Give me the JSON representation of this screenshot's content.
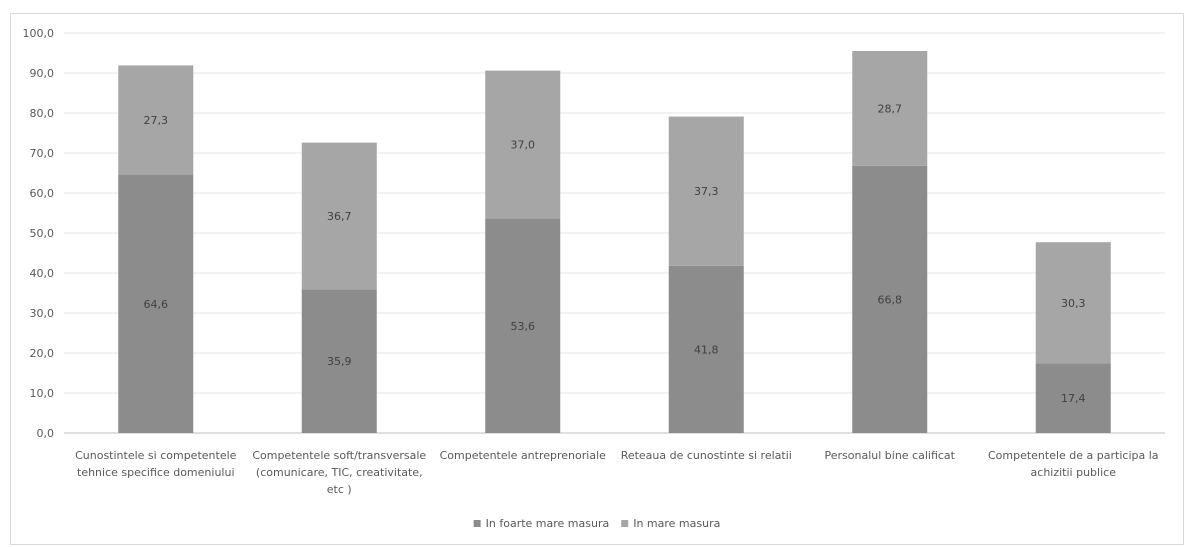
{
  "chart_data": {
    "type": "bar",
    "stacked": true,
    "categories": [
      [
        "Cunostintele si competentele",
        "tehnice specifice domeniului"
      ],
      [
        "Competentele soft/transversale",
        "(comunicare, TIC, creativitate,",
        "etc )"
      ],
      [
        "Competentele antreprenoriale"
      ],
      [
        "Reteaua de cunostinte si relatii"
      ],
      [
        "Personalul bine calificat"
      ],
      [
        "Competentele de a participa la",
        "achizitii publice"
      ]
    ],
    "series": [
      {
        "name": "In foarte mare masura",
        "color": "#8c8c8c",
        "values": [
          64.6,
          35.9,
          53.6,
          41.8,
          66.8,
          17.4
        ]
      },
      {
        "name": "In mare masura",
        "color": "#a6a6a6",
        "values": [
          27.3,
          36.7,
          37.0,
          37.3,
          28.7,
          30.3
        ]
      }
    ],
    "data_labels": [
      [
        "64,6",
        "35,9",
        "53,6",
        "41,8",
        "66,8",
        "17,4"
      ],
      [
        "27,3",
        "36,7",
        "37,0",
        "37,3",
        "28,7",
        "30,3"
      ]
    ],
    "ylim": [
      0,
      100
    ],
    "y_ticks": [
      0,
      10,
      20,
      30,
      40,
      50,
      60,
      70,
      80,
      90,
      100
    ],
    "y_tick_labels": [
      "0,0",
      "10,0",
      "20,0",
      "30,0",
      "40,0",
      "50,0",
      "60,0",
      "70,0",
      "80,0",
      "90,0",
      "100,0"
    ],
    "grid": true,
    "gridline_color": "#e6e6e6",
    "axis_color": "#bfbfbf",
    "legend_position": "bottom",
    "title": "",
    "xlabel": "",
    "ylabel": ""
  }
}
